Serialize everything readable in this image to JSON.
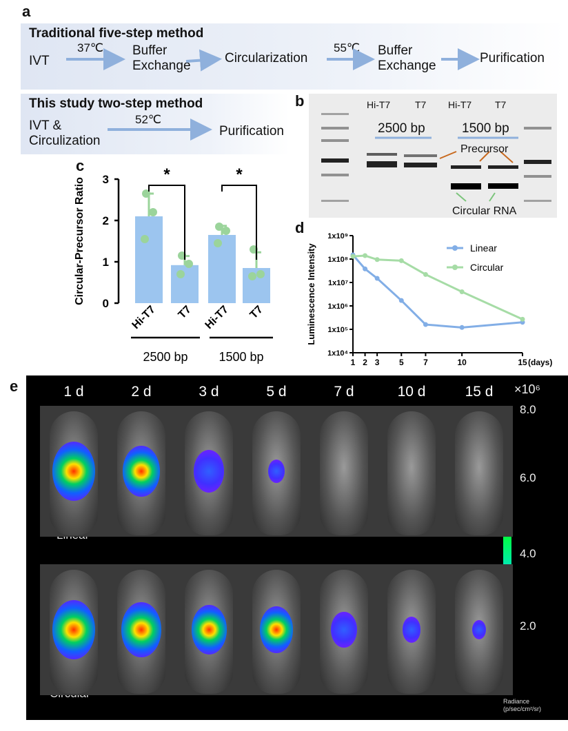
{
  "panels": {
    "a": "a",
    "b": "b",
    "c": "c",
    "d": "d",
    "e": "e"
  },
  "workflow": {
    "traditional_title": "Traditional five-step method",
    "traditional_steps": [
      "IVT",
      "Buffer Exchange",
      "Circularization",
      "Buffer Exchange",
      "Purification"
    ],
    "traditional_temps": [
      "37℃",
      "55℃"
    ],
    "study_title": "This study two-step method",
    "study_steps": [
      "IVT & Circulization",
      "Purification"
    ],
    "study_temp": "52℃"
  },
  "gel": {
    "lanes": [
      "Hi-T7",
      "T7",
      "Hi-T7",
      "T7"
    ],
    "groups": [
      "2500 bp",
      "1500 bp"
    ],
    "annotations": {
      "precursor": "Precursor",
      "circular": "Circular RNA"
    }
  },
  "bar_chart": {
    "significance": "*",
    "colors": {
      "bar": "#9cc5ef",
      "point": "#9bd49b"
    }
  },
  "line_chart": {
    "colors": {
      "Linear": "#82aee6",
      "Circular": "#a6dca6"
    }
  },
  "imaging": {
    "days": [
      "1 d",
      "2 d",
      "3 d",
      "5 d",
      "7 d",
      "10 d",
      "15 d"
    ],
    "row_labels": [
      "Linear",
      "Circular"
    ],
    "colorbar": {
      "multiplier": "×10⁶",
      "ticks": [
        "8.0",
        "6.0",
        "4.0",
        "2.0"
      ],
      "unit_line1": "Radiance",
      "unit_line2": "(p/sec/cm²/sr)"
    }
  },
  "chart_data": [
    {
      "type": "bar",
      "panel": "c",
      "categories": [
        "Hi-T7",
        "T7",
        "Hi-T7",
        "T7"
      ],
      "groups": [
        "2500 bp",
        "2500 bp",
        "1500 bp",
        "1500 bp"
      ],
      "group_labels": [
        "2500 bp",
        "1500 bp"
      ],
      "values": [
        2.1,
        0.92,
        1.65,
        0.85
      ],
      "errors": [
        0.55,
        0.22,
        0.22,
        0.38
      ],
      "points": [
        [
          2.65,
          2.2,
          1.55
        ],
        [
          1.15,
          0.95,
          0.7
        ],
        [
          1.85,
          1.75,
          1.45
        ],
        [
          1.3,
          0.7,
          0.65
        ]
      ],
      "ylabel": "Circular-Precursor Ratio",
      "ylim": [
        0,
        3
      ],
      "yticks": [
        "0",
        "1",
        "2",
        "3"
      ],
      "significance": [
        "*",
        "*"
      ],
      "grid": false
    },
    {
      "type": "line",
      "panel": "d",
      "x": [
        1,
        2,
        3,
        5,
        7,
        10,
        15
      ],
      "xticks": [
        "1",
        "2",
        "3",
        "5",
        "7",
        "10",
        "15"
      ],
      "xunit": "(days)",
      "ylabel": "Luminescence Intensity",
      "yscale": "log",
      "ylim": [
        10000,
        1000000000
      ],
      "yticks": [
        "1x10⁴",
        "1x10⁵",
        "1x10⁶",
        "1x10⁷",
        "1x10⁸",
        "1x10⁹"
      ],
      "legend_position": "top-right",
      "series": [
        {
          "name": "Linear",
          "values": [
            150000000,
            38000000,
            15000000,
            1700000,
            160000,
            120000,
            200000
          ]
        },
        {
          "name": "Circular",
          "values": [
            130000000,
            140000000,
            95000000,
            85000000,
            22000000,
            4000000,
            270000
          ]
        }
      ],
      "grid": false
    }
  ]
}
